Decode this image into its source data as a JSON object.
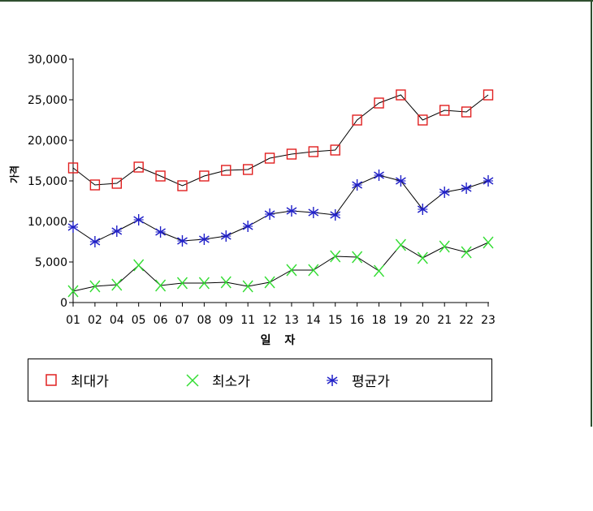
{
  "chart_data": {
    "type": "line",
    "categories": [
      "01",
      "02",
      "04",
      "05",
      "06",
      "07",
      "08",
      "09",
      "11",
      "12",
      "13",
      "14",
      "15",
      "16",
      "18",
      "19",
      "20",
      "21",
      "22",
      "23"
    ],
    "series": [
      {
        "name": "최대가",
        "marker": "square",
        "color": "#e02020",
        "values": [
          16600,
          14500,
          14700,
          16700,
          15600,
          14400,
          15600,
          16300,
          16400,
          17800,
          18300,
          18600,
          18800,
          22500,
          24600,
          25600,
          22500,
          23700,
          23500,
          25600
        ]
      },
      {
        "name": "최소가",
        "marker": "x",
        "color": "#33dd33",
        "values": [
          1400,
          2000,
          2200,
          4600,
          2100,
          2400,
          2400,
          2500,
          2000,
          2500,
          4000,
          4000,
          5700,
          5600,
          3900,
          7100,
          5500,
          6900,
          6200,
          7400
        ]
      },
      {
        "name": "평균가",
        "marker": "asterisk",
        "color": "#2020c8",
        "values": [
          9300,
          7500,
          8800,
          10200,
          8700,
          7600,
          7800,
          8200,
          9400,
          10900,
          11300,
          11100,
          10800,
          14500,
          15700,
          15000,
          11500,
          13600,
          14100,
          15000
        ]
      }
    ],
    "y_ticks": [
      "0",
      "5,000",
      "10,000",
      "15,000",
      "20,000",
      "25,000",
      "30,000"
    ],
    "ylim": [
      0,
      30000
    ],
    "xlabel": "일 자",
    "ylabel": "가격",
    "legend_position": "bottom",
    "line_color": "#000000",
    "grid": false
  }
}
